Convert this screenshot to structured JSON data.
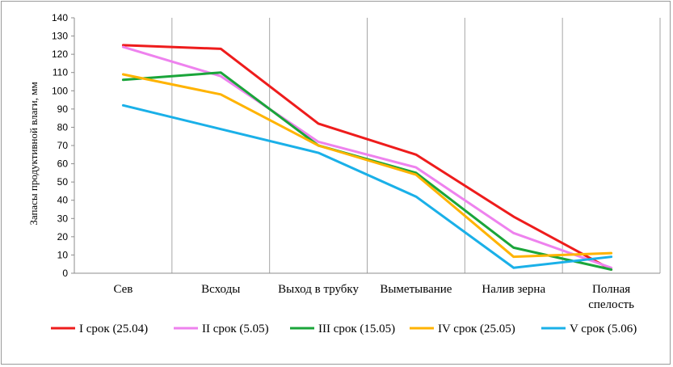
{
  "chart_data": {
    "type": "line",
    "title": "",
    "xlabel": "",
    "ylabel": "Запасы продуктивной влаги, мм",
    "ylim": [
      0,
      140
    ],
    "yticks": [
      0,
      10,
      20,
      30,
      40,
      50,
      60,
      70,
      80,
      90,
      100,
      110,
      120,
      130,
      140
    ],
    "grid": "vertical",
    "legend_position": "bottom",
    "categories": [
      [
        "Сев"
      ],
      [
        "Всходы"
      ],
      [
        "Выход в трубку"
      ],
      [
        "Выметывание"
      ],
      [
        "Налив зерна"
      ],
      [
        "Полная",
        "спелость"
      ]
    ],
    "series": [
      {
        "name": "I срок (25.04)",
        "color": "#ee1c1c",
        "values": [
          125,
          123,
          82,
          65,
          31,
          2
        ]
      },
      {
        "name": "II срок (5.05)",
        "color": "#ee82ee",
        "values": [
          124,
          108,
          72,
          58,
          22,
          3
        ]
      },
      {
        "name": "III срок (15.05)",
        "color": "#1aa53a",
        "values": [
          106,
          110,
          70,
          55,
          14,
          2
        ]
      },
      {
        "name": "IV срок (25.05)",
        "color": "#ffb300",
        "values": [
          109,
          98,
          70,
          54,
          9,
          11
        ]
      },
      {
        "name": "V срок (5.06)",
        "color": "#1ab0e8",
        "values": [
          92,
          79,
          66,
          42,
          3,
          9
        ]
      }
    ]
  }
}
